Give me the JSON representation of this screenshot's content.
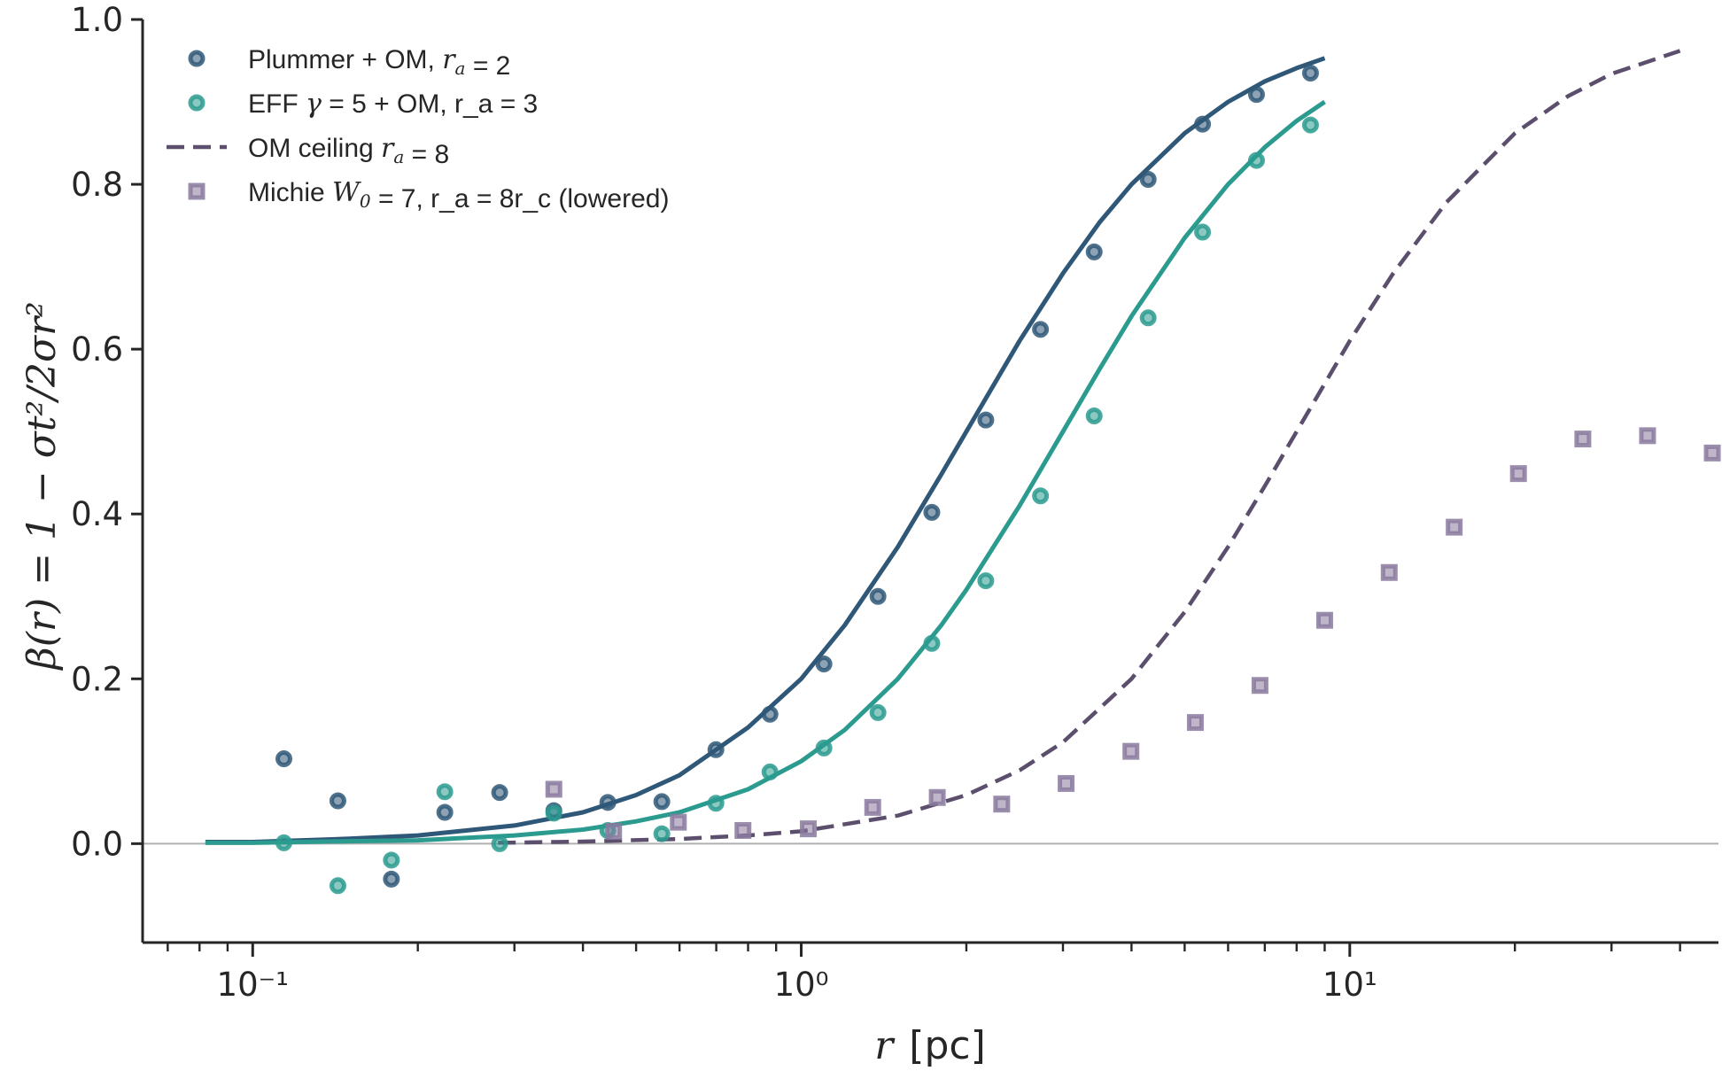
{
  "chart_data": {
    "type": "line",
    "xscale": "log",
    "xlim": [
      0.063,
      47
    ],
    "ylim": [
      -0.12,
      1.0
    ],
    "grid": false,
    "legend_position": "top-left",
    "xlabel": "r  [pc]",
    "ylabel": "β(r) = 1 − σt²/2σr²",
    "x_ticks": [
      {
        "value": 0.1,
        "label": "10⁻¹"
      },
      {
        "value": 1,
        "label": "10⁰"
      },
      {
        "value": 10,
        "label": "10¹"
      }
    ],
    "y_ticks": [
      {
        "value": 0.0,
        "label": "0.0"
      },
      {
        "value": 0.2,
        "label": "0.2"
      },
      {
        "value": 0.4,
        "label": "0.4"
      },
      {
        "value": 0.6,
        "label": "0.6"
      },
      {
        "value": 0.8,
        "label": "0.8"
      },
      {
        "value": 1.0,
        "label": "1.0"
      }
    ],
    "reference_line_y": 0,
    "colors": {
      "plummer": "#2f5878",
      "eff": "#2c9b8f",
      "om": "#5c4f6e",
      "michie": "#8a7a9f",
      "axis": "#262626",
      "reference": "#b0b0b0"
    },
    "series": [
      {
        "name": "Plummer + OM, r_a = 2",
        "kind": "curve",
        "style": "solid",
        "color": "#2f5878",
        "x": [
          0.082,
          0.1,
          0.15,
          0.2,
          0.3,
          0.4,
          0.5,
          0.6,
          0.8,
          1.0,
          1.2,
          1.5,
          1.8,
          2.0,
          2.5,
          3.0,
          3.5,
          4.0,
          5.0,
          6.0,
          7.0,
          8.0,
          9.0
        ],
        "y": [
          0.002,
          0.002,
          0.006,
          0.01,
          0.022,
          0.038,
          0.059,
          0.083,
          0.141,
          0.2,
          0.265,
          0.36,
          0.448,
          0.5,
          0.61,
          0.692,
          0.754,
          0.8,
          0.862,
          0.9,
          0.925,
          0.941,
          0.953
        ]
      },
      {
        "name": "EFF γ = 5 + OM, r_a = 3",
        "kind": "curve",
        "style": "solid",
        "color": "#2c9b8f",
        "x": [
          0.082,
          0.1,
          0.15,
          0.2,
          0.3,
          0.4,
          0.5,
          0.6,
          0.8,
          1.0,
          1.2,
          1.5,
          1.8,
          2.0,
          2.5,
          3.0,
          3.5,
          4.0,
          5.0,
          6.0,
          7.0,
          8.0,
          9.0
        ],
        "y": [
          0.001,
          0.001,
          0.003,
          0.004,
          0.01,
          0.017,
          0.027,
          0.038,
          0.066,
          0.1,
          0.138,
          0.2,
          0.265,
          0.308,
          0.41,
          0.5,
          0.576,
          0.64,
          0.735,
          0.8,
          0.845,
          0.877,
          0.9
        ]
      },
      {
        "name": "OM ceiling r_a = 8",
        "kind": "curve",
        "style": "dashed",
        "color": "#5c4f6e",
        "x": [
          0.28,
          0.4,
          0.6,
          0.8,
          1.0,
          1.5,
          2.0,
          2.5,
          3.0,
          4.0,
          5.0,
          6.0,
          7.0,
          8.0,
          10.0,
          12.0,
          15.0,
          20.0,
          25.0,
          30.0,
          40.0
        ],
        "y": [
          0.001,
          0.0025,
          0.0056,
          0.01,
          0.015,
          0.034,
          0.059,
          0.089,
          0.123,
          0.2,
          0.281,
          0.36,
          0.434,
          0.5,
          0.61,
          0.692,
          0.778,
          0.862,
          0.907,
          0.934,
          0.962
        ]
      },
      {
        "name": "Plummer + OM, r_a = 2",
        "kind": "points",
        "marker": "circle",
        "color": "#2f5878",
        "x": [
          0.114,
          0.143,
          0.179,
          0.224,
          0.282,
          0.354,
          0.444,
          0.557,
          0.699,
          0.877,
          1.1,
          1.38,
          1.73,
          2.17,
          2.73,
          3.42,
          4.29,
          5.39,
          6.76,
          8.48
        ],
        "y": [
          0.103,
          0.052,
          -0.043,
          0.038,
          0.062,
          0.04,
          0.05,
          0.051,
          0.114,
          0.157,
          0.218,
          0.3,
          0.402,
          0.514,
          0.624,
          0.718,
          0.806,
          0.873,
          0.909,
          0.935
        ]
      },
      {
        "name": "EFF γ = 5 + OM, r_a = 3",
        "kind": "points",
        "marker": "circle",
        "color": "#2c9b8f",
        "x": [
          0.114,
          0.143,
          0.179,
          0.224,
          0.282,
          0.354,
          0.444,
          0.557,
          0.699,
          0.877,
          1.1,
          1.38,
          1.73,
          2.17,
          2.73,
          3.42,
          4.29,
          5.39,
          6.76,
          8.48
        ],
        "y": [
          0.001,
          -0.051,
          -0.02,
          0.063,
          0.0,
          0.037,
          0.016,
          0.012,
          0.049,
          0.087,
          0.116,
          0.159,
          0.243,
          0.319,
          0.422,
          0.519,
          0.638,
          0.742,
          0.829,
          0.872
        ]
      },
      {
        "name": "Michie W₀ = 7, r_a = 8r_c (lowered)",
        "kind": "points",
        "marker": "square",
        "color": "#8a7a9f",
        "x": [
          0.354,
          0.455,
          0.597,
          0.783,
          1.03,
          1.35,
          1.77,
          2.32,
          3.04,
          3.99,
          5.23,
          6.86,
          9.0,
          11.8,
          15.5,
          20.3,
          26.6,
          34.9,
          45.8
        ],
        "y": [
          0.066,
          0.015,
          0.026,
          0.016,
          0.018,
          0.044,
          0.056,
          0.048,
          0.073,
          0.112,
          0.147,
          0.192,
          0.271,
          0.329,
          0.384,
          0.449,
          0.491,
          0.495,
          0.474
        ]
      }
    ],
    "legend": [
      {
        "marker": "circle",
        "color": "#2f5878",
        "prefix": "Plummer + OM, ",
        "math": "r",
        "sub": "a",
        "after": " = 2",
        "suffix": ""
      },
      {
        "marker": "circle",
        "color": "#2c9b8f",
        "prefix": "EFF ",
        "math": "γ",
        "sub": "",
        "after": " = 5",
        "suffix": " + OM, r_a = 3"
      },
      {
        "marker": "dash",
        "color": "#5c4f6e",
        "prefix": "OM ceiling ",
        "math": "r",
        "sub": "a",
        "after": " = 8",
        "suffix": ""
      },
      {
        "marker": "square",
        "color": "#8a7a9f",
        "prefix": "Michie ",
        "math": "W",
        "sub": "0",
        "after": " = 7, r_a = 8r_c",
        "suffix": " (lowered)"
      }
    ]
  }
}
